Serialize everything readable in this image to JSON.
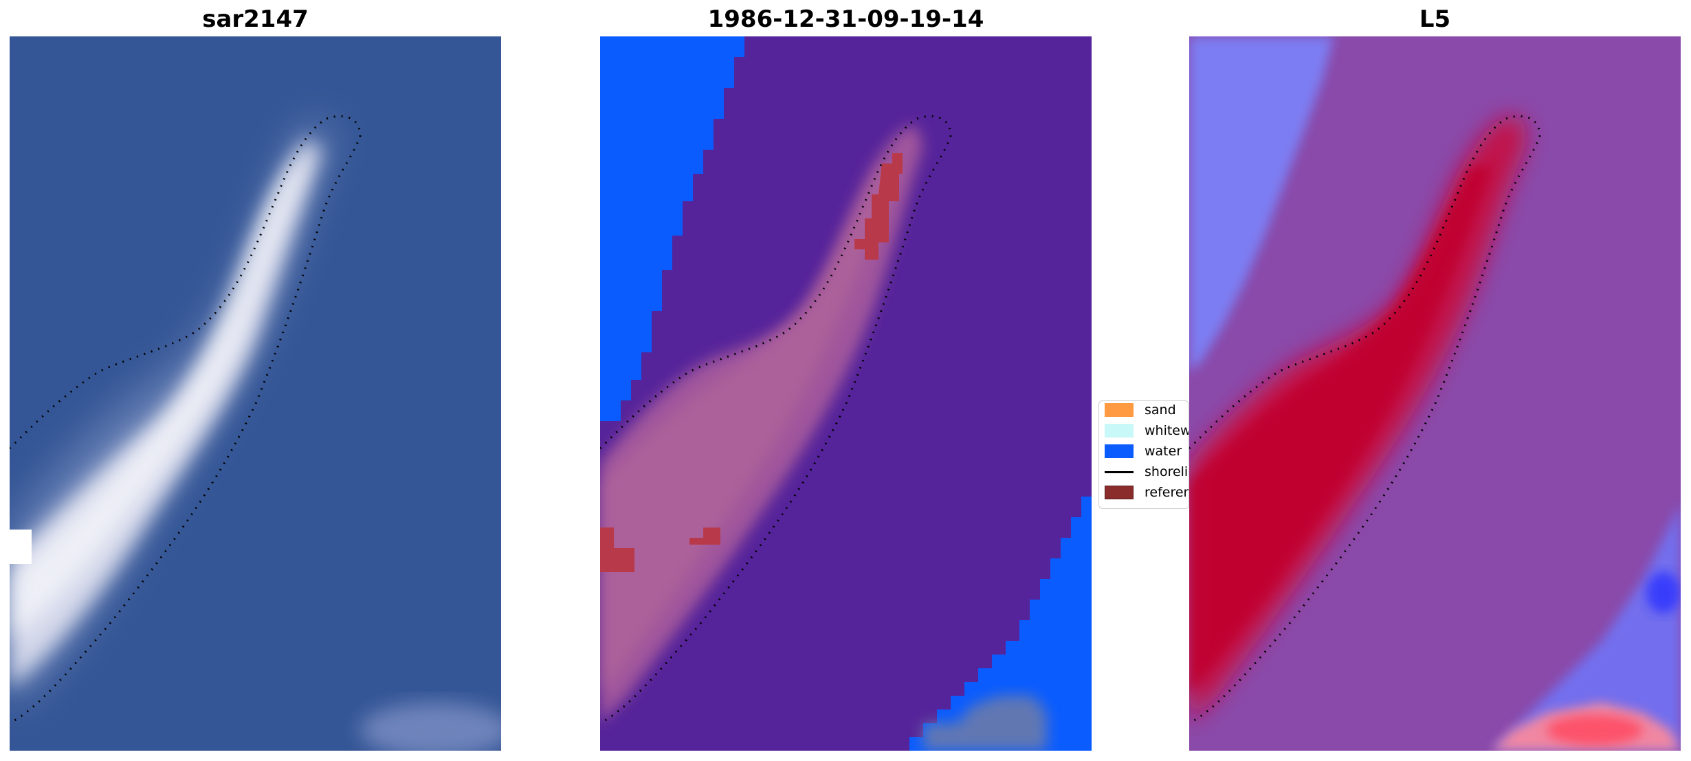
{
  "panels": [
    {
      "title": "sar2147"
    },
    {
      "title": "1986-12-31-09-19-14"
    },
    {
      "title": "L5"
    }
  ],
  "legend": {
    "items": [
      {
        "label": "sand",
        "icon": "patch",
        "color": "#ff9a42"
      },
      {
        "label": "whitewater",
        "icon": "patch",
        "color": "#c8f8f8"
      },
      {
        "label": "water",
        "icon": "patch",
        "color": "#0a5cff"
      },
      {
        "label": "shoreline",
        "icon": "line",
        "color": "#000000"
      },
      {
        "label": "reference shoreline",
        "icon": "patch",
        "color": "#8b2c2c"
      }
    ]
  },
  "colors": {
    "sea_rgb": "#3a5a9a",
    "land_rgb": "#e6e6f2",
    "class_water": "#0a5cff",
    "class_other": "#56249a",
    "class_sand_overlay": "#a85c9c",
    "class_reference": "#b83a4a",
    "index_low": "#3b4cff",
    "index_mid": "#8a4aaa",
    "index_high": "#c0002e"
  }
}
